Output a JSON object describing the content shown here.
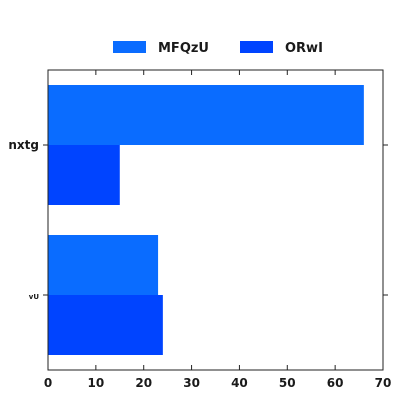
{
  "chart_data": {
    "type": "bar",
    "orientation": "horizontal",
    "categories": [
      "nxtg",
      "vU"
    ],
    "series": [
      {
        "name": "MFQzU",
        "values": [
          66,
          23
        ],
        "color": "#0a6cff"
      },
      {
        "name": "ORwI",
        "values": [
          15,
          24
        ],
        "color": "#0044ff"
      }
    ],
    "xlim": [
      0,
      70
    ],
    "xticks": [
      0,
      10,
      20,
      30,
      40,
      50,
      60,
      70
    ],
    "title": "",
    "xlabel": "",
    "ylabel": "",
    "grid": false,
    "legend_position": "top-center"
  }
}
